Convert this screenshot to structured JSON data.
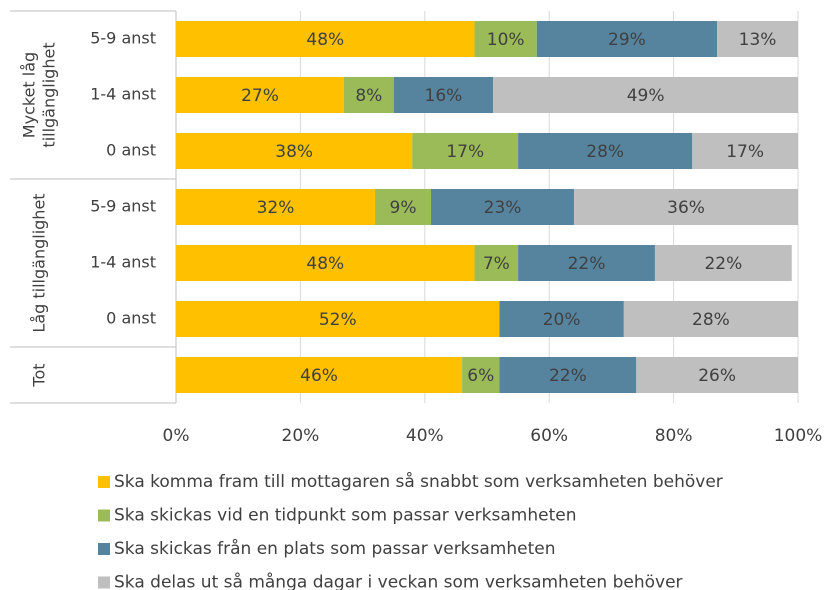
{
  "chart_data": {
    "type": "stacked_bar_horizontal",
    "categories": [
      "5-9 anst",
      "1-4 anst",
      "0 anst",
      "5-9 anst",
      "1-4 anst",
      "0 anst",
      null
    ],
    "groups": [
      {
        "label_lines": [
          "Mycket låg",
          "tillgänglighet"
        ],
        "rows": 3
      },
      {
        "label_lines": [
          "Låg tillgänglighet"
        ],
        "rows": 3
      },
      {
        "label_lines": [
          "Tot"
        ],
        "rows": 1
      }
    ],
    "series": [
      {
        "name": "Ska komma fram till mottagaren så snabbt som verksamheten behöver",
        "color": "#ffc000",
        "values": [
          48,
          27,
          38,
          32,
          48,
          52,
          46
        ],
        "value_labels": [
          "48%",
          "27%",
          "38%",
          "32%",
          "48%",
          "52%",
          "46%"
        ]
      },
      {
        "name": "Ska skickas vid en tidpunkt som passar verksamheten",
        "color": "#9bbb59",
        "values": [
          10,
          8,
          17,
          9,
          7,
          null,
          6
        ],
        "value_labels": [
          "10%",
          "8%",
          "17%",
          "9%",
          "7%",
          null,
          "6%"
        ]
      },
      {
        "name": "Ska skickas från en plats som passar verksamheten",
        "color": "#56849e",
        "values": [
          29,
          16,
          28,
          23,
          22,
          20,
          22
        ],
        "value_labels": [
          "29%",
          "16%",
          "28%",
          "23%",
          "22%",
          "20%",
          "22%"
        ]
      },
      {
        "name": "Ska delas ut så många dagar i veckan som verksamheten behöver",
        "color": "#bfbfbf",
        "values": [
          13,
          49,
          17,
          36,
          22,
          28,
          26
        ],
        "value_labels": [
          "13%",
          "49%",
          "17%",
          "36%",
          "22%",
          "28%",
          "26%"
        ]
      }
    ],
    "xlim": [
      0,
      100
    ],
    "xticks": [
      {
        "value": 0,
        "label": "0%"
      },
      {
        "value": 20,
        "label": "20%"
      },
      {
        "value": 40,
        "label": "40%"
      },
      {
        "value": 60,
        "label": "60%"
      },
      {
        "value": 80,
        "label": "80%"
      },
      {
        "value": 100,
        "label": "100%"
      }
    ],
    "grid": true
  }
}
